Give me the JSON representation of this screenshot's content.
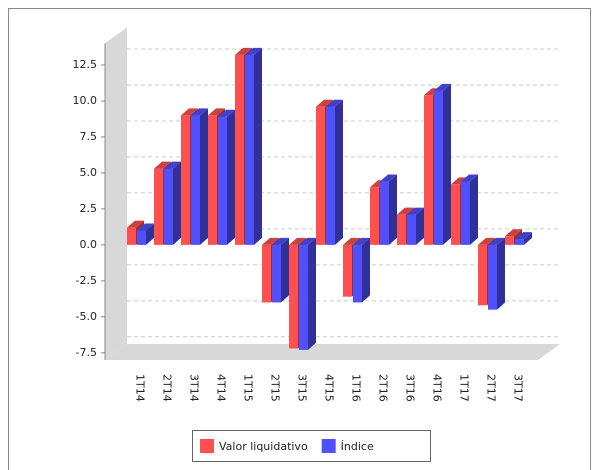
{
  "chart_data": {
    "type": "bar",
    "categories": [
      "1T14",
      "2T14",
      "3T14",
      "4T14",
      "1T15",
      "2T15",
      "3T15",
      "4T15",
      "1T16",
      "2T16",
      "3T16",
      "4T16",
      "1T17",
      "2T17",
      "3T17"
    ],
    "series": [
      {
        "name": "Valor liquidativo",
        "color": "#ff5050",
        "values": [
          1.2,
          5.3,
          9.0,
          9.0,
          13.2,
          -4.0,
          -7.2,
          9.6,
          -3.6,
          4.0,
          2.1,
          10.4,
          4.2,
          -4.2,
          0.6
        ]
      },
      {
        "name": "Índice",
        "color": "#5050ff",
        "values": [
          1.0,
          5.3,
          9.0,
          8.9,
          13.2,
          -4.0,
          -7.3,
          9.6,
          -4.0,
          4.4,
          2.1,
          10.7,
          4.4,
          -4.5,
          0.4
        ]
      }
    ],
    "ylim": [
      -8,
      14
    ],
    "yticks": [
      {
        "value": -7.5,
        "label": "-7.5"
      },
      {
        "value": -5,
        "label": "-5.0"
      },
      -2.5,
      {
        "value": 0,
        "label": "0.0"
      },
      2.5,
      {
        "value": 5,
        "label": "5.0"
      },
      7.5,
      {
        "value": 10,
        "label": "10.0"
      },
      12.5
    ],
    "grid": true,
    "legend": "bottom"
  }
}
